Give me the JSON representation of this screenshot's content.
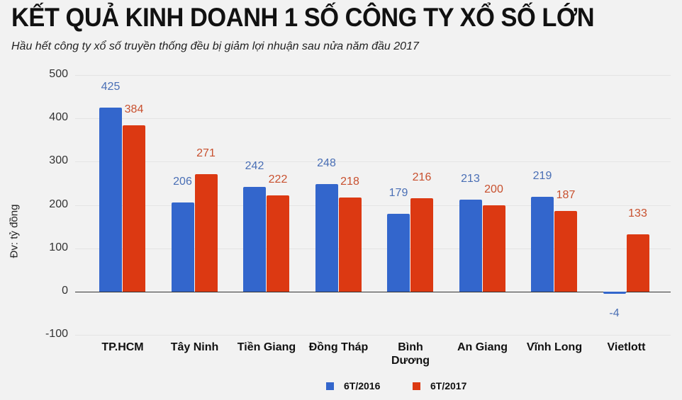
{
  "title": "KẾT QUẢ KINH DOANH 1 SỐ CÔNG TY XỔ SỐ LỚN",
  "subtitle": "Hầu hết công ty xổ số truyền thống đều bị giảm lợi nhuận sau nửa năm đầu 2017",
  "colors": {
    "series_2016": "#3366cc",
    "series_2017": "#dc3912",
    "label_2016": "#4a6fb5",
    "label_2017": "#c8502e"
  },
  "y_ticks": [
    "500",
    "400",
    "300",
    "200",
    "100",
    "0",
    "-100"
  ],
  "chart_data": {
    "type": "bar",
    "title": "KẾT QUẢ KINH DOANH 1 SỐ CÔNG TY XỔ SỐ LỚN",
    "subtitle": "Hầu hết công ty xổ số truyền thống đều bị giảm lợi nhuận sau nửa năm đầu 2017",
    "xlabel": "",
    "ylabel": "Đv: tỷ đồng",
    "ylim": [
      -100,
      500
    ],
    "yticks": [
      -100,
      0,
      100,
      200,
      300,
      400,
      500
    ],
    "grid": true,
    "legend_position": "bottom",
    "categories": [
      "TP.HCM",
      "Tây Ninh",
      "Tiền Giang",
      "Đồng Tháp",
      "Bình Dương",
      "An Giang",
      "Vĩnh Long",
      "Vietlott"
    ],
    "series": [
      {
        "name": "6T/2016",
        "values": [
          425,
          206,
          242,
          248,
          179,
          213,
          219,
          -4
        ]
      },
      {
        "name": "6T/2017",
        "values": [
          384,
          271,
          222,
          218,
          216,
          200,
          187,
          133
        ]
      }
    ]
  }
}
